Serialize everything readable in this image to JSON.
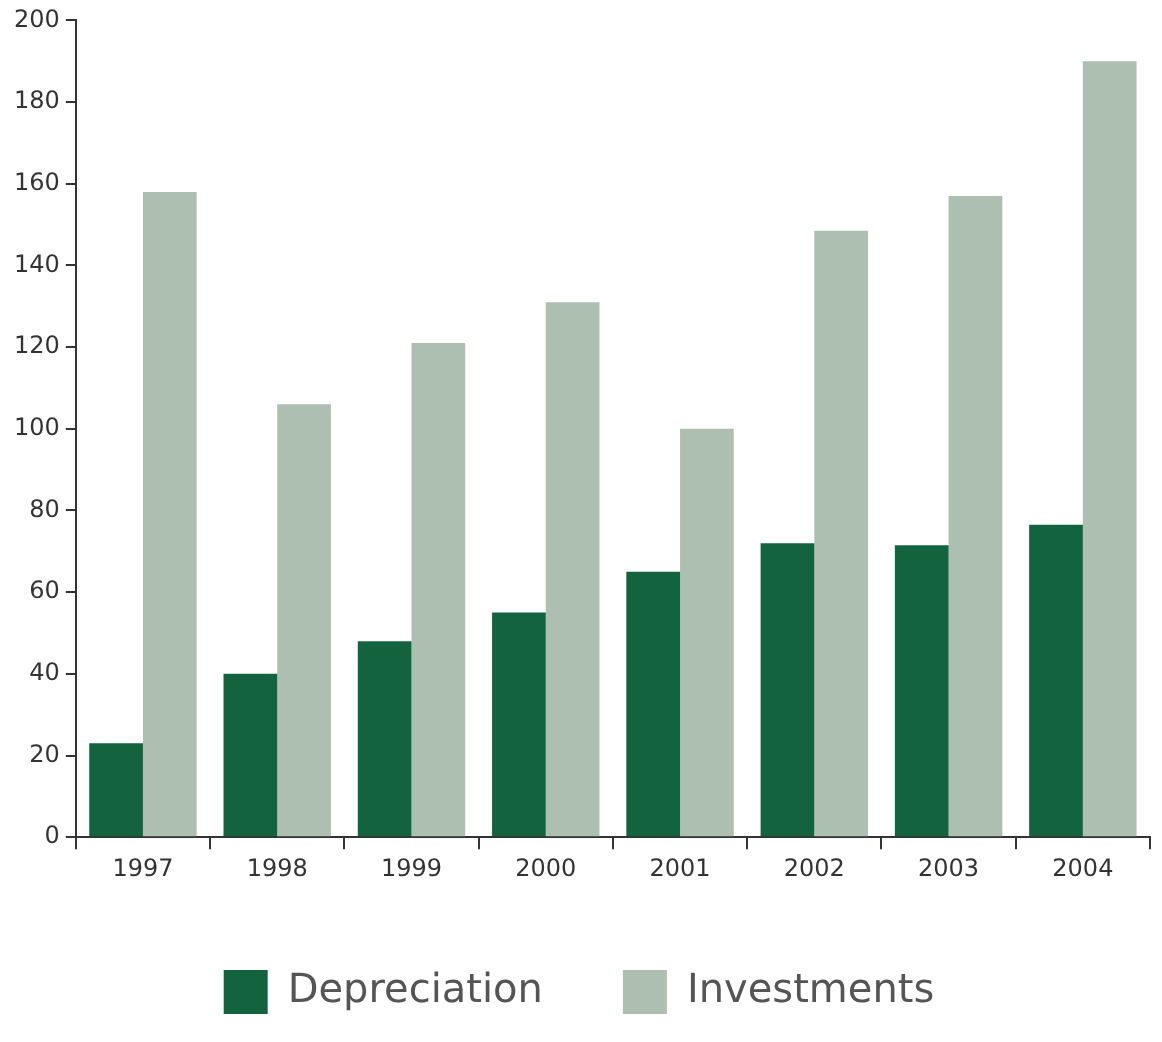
{
  "chart_data": {
    "type": "bar",
    "categories": [
      "1997",
      "1998",
      "1999",
      "2000",
      "2001",
      "2002",
      "2003",
      "2004"
    ],
    "series": [
      {
        "name": "Depreciation",
        "color": "#12633e",
        "values": [
          23,
          40,
          48,
          55,
          65,
          72,
          71.5,
          76.5
        ]
      },
      {
        "name": "Investments",
        "color": "#adbfb0",
        "values": [
          158,
          106,
          121,
          131,
          100,
          148.5,
          157,
          190
        ]
      }
    ],
    "ylim": [
      0,
      200
    ],
    "yticks": [
      0,
      20,
      40,
      60,
      80,
      100,
      120,
      140,
      160,
      180,
      200
    ],
    "grid": false,
    "legend": "bottom"
  }
}
